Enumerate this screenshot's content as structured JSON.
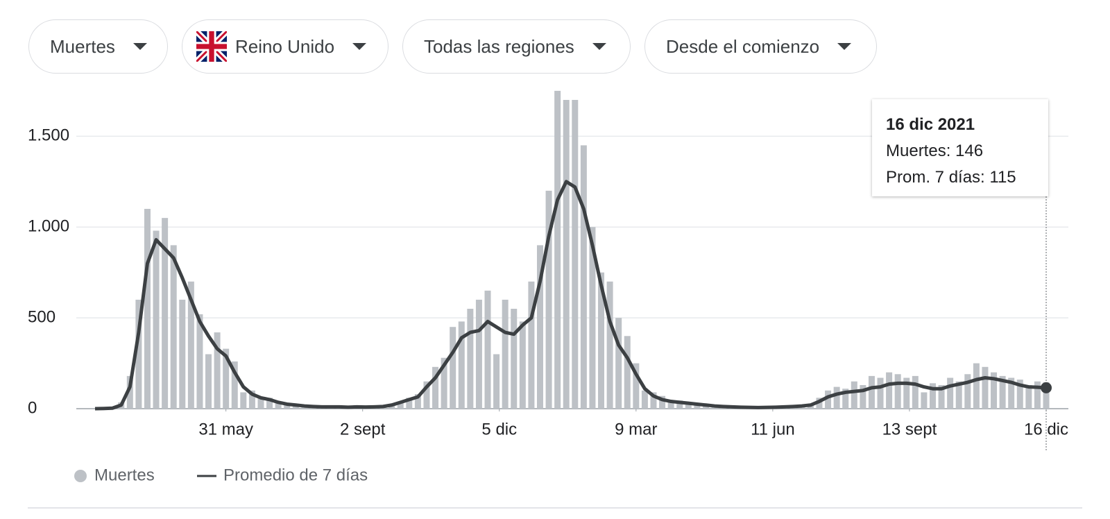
{
  "filters": [
    "Muertes",
    "Reino Unido",
    "Todas las regiones",
    "Desde el comienzo"
  ],
  "tooltip": {
    "date": "16 dic 2021",
    "lines": [
      "Muertes: 146",
      "Prom. 7 días: 115"
    ]
  },
  "chart_data": {
    "type": "bar",
    "x": [
      0,
      6,
      12,
      18,
      24,
      30,
      36,
      42,
      48,
      54,
      60,
      66,
      72,
      78,
      84,
      90,
      96,
      102,
      108,
      114,
      120,
      126,
      132,
      138,
      144,
      150,
      156,
      162,
      168,
      174,
      180,
      186,
      192,
      198,
      204,
      210,
      216,
      222,
      228,
      234,
      240,
      246,
      252,
      258,
      264,
      270,
      276,
      282,
      288,
      294,
      300,
      306,
      312,
      318,
      324,
      330,
      336,
      342,
      348,
      354,
      360,
      366,
      372,
      378,
      384,
      390,
      396,
      402,
      408,
      414,
      420,
      426,
      432,
      438,
      444,
      450,
      456,
      462,
      468,
      474,
      480,
      486,
      492,
      498,
      504,
      510,
      516,
      522,
      528,
      534,
      540,
      546,
      552,
      558,
      564,
      570,
      576,
      582,
      588,
      594,
      600,
      606,
      612,
      618,
      624,
      630,
      636,
      642,
      648,
      654
    ],
    "series": [
      {
        "name": "Muertes",
        "type": "bar",
        "color": "#bdc1c6",
        "values": [
          0,
          1,
          5,
          35,
          180,
          600,
          1100,
          980,
          1050,
          900,
          600,
          700,
          520,
          300,
          420,
          330,
          260,
          90,
          100,
          55,
          60,
          40,
          30,
          25,
          12,
          15,
          9,
          12,
          8,
          11,
          9,
          12,
          11,
          14,
          25,
          40,
          60,
          80,
          150,
          230,
          280,
          450,
          480,
          550,
          600,
          650,
          300,
          600,
          550,
          480,
          700,
          900,
          1200,
          1750,
          1700,
          1700,
          1450,
          1000,
          750,
          700,
          500,
          400,
          250,
          100,
          90,
          70,
          35,
          45,
          35,
          30,
          22,
          18,
          10,
          12,
          9,
          10,
          7,
          9,
          10,
          12,
          15,
          22,
          25,
          60,
          100,
          120,
          110,
          150,
          130,
          180,
          170,
          200,
          190,
          170,
          180,
          90,
          140,
          130,
          170,
          150,
          190,
          250,
          230,
          200,
          180,
          170,
          160,
          130,
          150,
          146
        ]
      },
      {
        "name": "Promedio de 7 días",
        "type": "line",
        "color": "#3c4043",
        "values": [
          0,
          1,
          3,
          20,
          120,
          420,
          800,
          930,
          880,
          830,
          720,
          600,
          480,
          400,
          330,
          290,
          200,
          120,
          80,
          60,
          50,
          35,
          25,
          20,
          15,
          12,
          10,
          10,
          10,
          8,
          10,
          9,
          10,
          12,
          20,
          35,
          50,
          65,
          120,
          170,
          240,
          310,
          390,
          420,
          430,
          480,
          450,
          420,
          410,
          460,
          500,
          700,
          950,
          1150,
          1250,
          1220,
          1100,
          900,
          680,
          480,
          350,
          280,
          190,
          110,
          70,
          50,
          40,
          35,
          30,
          25,
          20,
          15,
          12,
          10,
          8,
          7,
          6,
          7,
          8,
          10,
          12,
          15,
          20,
          40,
          65,
          80,
          90,
          95,
          100,
          115,
          120,
          135,
          140,
          140,
          135,
          120,
          110,
          110,
          125,
          135,
          145,
          160,
          170,
          165,
          155,
          145,
          130,
          120,
          118,
          115
        ]
      }
    ],
    "xlim": [
      0,
      669
    ],
    "xticks": [
      {
        "value": 90,
        "label": "31 may"
      },
      {
        "value": 184,
        "label": "2 sept"
      },
      {
        "value": 278,
        "label": "5 dic"
      },
      {
        "value": 372,
        "label": "9 mar"
      },
      {
        "value": 466,
        "label": "11 jun"
      },
      {
        "value": 560,
        "label": "13 sept"
      },
      {
        "value": 654,
        "label": "16 dic"
      }
    ],
    "ylim": [
      0,
      1700
    ],
    "yticks": [
      0,
      500,
      {
        "value": 1000,
        "label": "1.000"
      },
      {
        "value": 1500,
        "label": "1.500"
      }
    ],
    "grid": true
  }
}
